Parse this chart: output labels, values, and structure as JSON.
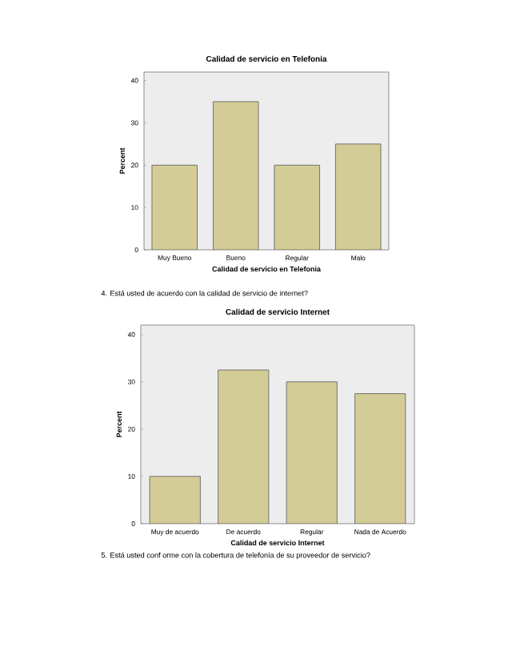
{
  "chart_data": [
    {
      "type": "bar",
      "title": "Calidad de servicio en Telefonia",
      "xlabel": "Calidad de servicio en Telefonia",
      "ylabel": "Percent",
      "categories": [
        "Muy Bueno",
        "Bueno",
        "Regular",
        "Malo"
      ],
      "values": [
        20,
        35,
        20,
        25
      ],
      "color": "#d3cc96",
      "ylim": [
        0,
        42
      ],
      "yticks": [
        0,
        10,
        20,
        30,
        40
      ],
      "annotations": [
        "4.   Está usted de acuerdo con la calidad de servicio de internet?"
      ]
    },
    {
      "type": "bar",
      "title": "Calidad de servicio Internet",
      "xlabel": "Calidad de servicio Internet",
      "ylabel": "Percent",
      "categories": [
        "Muy de acuerdo",
        "De acuerdo",
        "Regular",
        "Nada de Acuerdo"
      ],
      "values": [
        10,
        32.5,
        30,
        27.5
      ],
      "color": "#d3cc96",
      "ylim": [
        0,
        42
      ],
      "yticks": [
        0,
        10,
        20,
        30,
        40
      ],
      "annotations": [
        "5.   Está usted conf orme con la cobertura de telefonía de su proveedor de servicio?"
      ]
    }
  ]
}
